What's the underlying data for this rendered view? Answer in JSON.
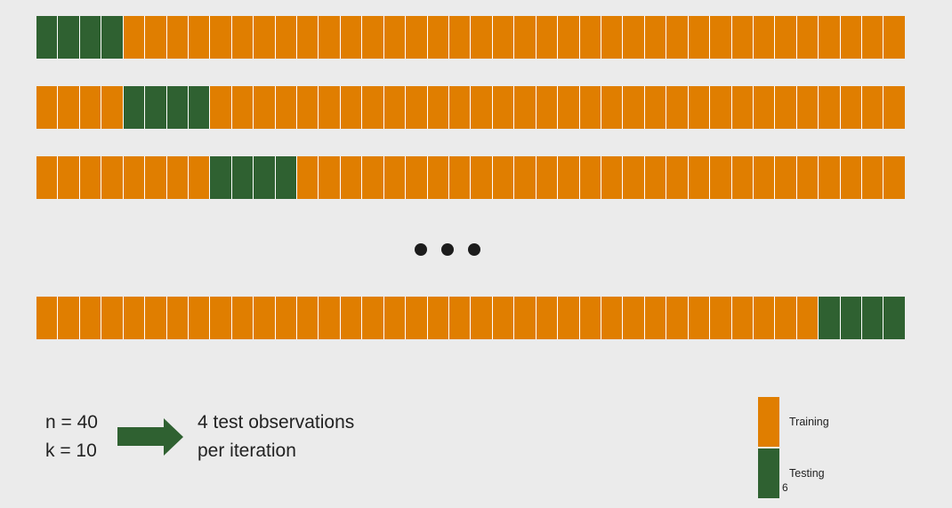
{
  "diagram": {
    "total_cells": 40,
    "colors": {
      "training": "#e07e00",
      "testing": "#2f6131"
    },
    "iterations": [
      {
        "test_start": 0,
        "test_count": 4
      },
      {
        "test_start": 4,
        "test_count": 4
      },
      {
        "test_start": 8,
        "test_count": 4
      },
      {
        "test_start": 36,
        "test_count": 4
      }
    ],
    "ellipsis": "..."
  },
  "params": {
    "n_line": "n = 40",
    "k_line": "k = 10"
  },
  "result": {
    "line1": "4 test observations",
    "line2": "per iteration"
  },
  "legend": {
    "training_label": "Training",
    "testing_label": "Testing",
    "stray_digit": "6"
  }
}
